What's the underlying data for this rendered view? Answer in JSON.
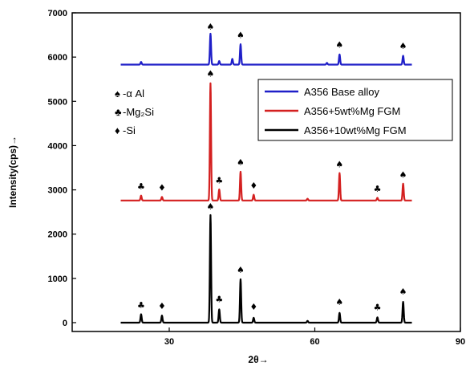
{
  "chart_data": {
    "type": "line",
    "xlabel": "2θ→",
    "ylabel": "Intensity(cps)→",
    "xlim": [
      10,
      90
    ],
    "ylim": [
      -200,
      7000
    ],
    "xticks": [
      30,
      60,
      90
    ],
    "yticks": [
      0,
      1000,
      2000,
      3000,
      4000,
      5000,
      6000,
      7000
    ],
    "grid": false,
    "legend_position": "top-right",
    "series": [
      {
        "name": "A356 Base alloy",
        "color": "#1f1fc8",
        "baseline": 5830,
        "peaks": [
          [
            24.2,
            60
          ],
          [
            38.5,
            700
          ],
          [
            40.3,
            80
          ],
          [
            43.0,
            130
          ],
          [
            44.7,
            460
          ],
          [
            62.5,
            40
          ],
          [
            65.1,
            230
          ],
          [
            78.2,
            200
          ]
        ]
      },
      {
        "name": "A356+5wt%Mg FGM",
        "color": "#d42020",
        "baseline": 2760,
        "peaks": [
          [
            24.2,
            110
          ],
          [
            28.5,
            80
          ],
          [
            38.5,
            2650
          ],
          [
            40.3,
            250
          ],
          [
            44.7,
            650
          ],
          [
            47.4,
            130
          ],
          [
            58.5,
            40
          ],
          [
            65.1,
            620
          ],
          [
            72.9,
            60
          ],
          [
            78.2,
            380
          ]
        ]
      },
      {
        "name": "A356+10wt%Mg FGM",
        "color": "#000000",
        "baseline": 0,
        "peaks": [
          [
            24.2,
            190
          ],
          [
            28.5,
            160
          ],
          [
            38.5,
            2430
          ],
          [
            40.3,
            300
          ],
          [
            44.7,
            980
          ],
          [
            47.4,
            110
          ],
          [
            58.5,
            40
          ],
          [
            65.1,
            220
          ],
          [
            72.9,
            120
          ],
          [
            78.2,
            470
          ]
        ]
      }
    ],
    "marker_legend": [
      {
        "symbol": "♠",
        "label": "-α Al"
      },
      {
        "symbol": "♣",
        "label": "-Mg₂Si"
      },
      {
        "symbol": "♦",
        "label": "-Si"
      }
    ],
    "annotations": [
      {
        "symbol": "♠",
        "x": 38.5,
        "y": 6620
      },
      {
        "symbol": "♠",
        "x": 44.7,
        "y": 6430
      },
      {
        "symbol": "♠",
        "x": 65.1,
        "y": 6210
      },
      {
        "symbol": "♠",
        "x": 78.2,
        "y": 6180
      },
      {
        "symbol": "♠",
        "x": 38.5,
        "y": 5560
      },
      {
        "symbol": "♣",
        "x": 24.2,
        "y": 3010
      },
      {
        "symbol": "♦",
        "x": 28.5,
        "y": 2980
      },
      {
        "symbol": "♣",
        "x": 40.3,
        "y": 3150
      },
      {
        "symbol": "♠",
        "x": 44.7,
        "y": 3550
      },
      {
        "symbol": "♦",
        "x": 47.4,
        "y": 3030
      },
      {
        "symbol": "♠",
        "x": 65.1,
        "y": 3510
      },
      {
        "symbol": "♣",
        "x": 72.9,
        "y": 2960
      },
      {
        "symbol": "♠",
        "x": 78.2,
        "y": 3270
      },
      {
        "symbol": "♠",
        "x": 38.5,
        "y": 2560
      },
      {
        "symbol": "♣",
        "x": 24.2,
        "y": 330
      },
      {
        "symbol": "♦",
        "x": 28.5,
        "y": 310
      },
      {
        "symbol": "♣",
        "x": 40.3,
        "y": 460
      },
      {
        "symbol": "♠",
        "x": 44.7,
        "y": 1120
      },
      {
        "symbol": "♦",
        "x": 47.4,
        "y": 290
      },
      {
        "symbol": "♠",
        "x": 65.1,
        "y": 400
      },
      {
        "symbol": "♣",
        "x": 72.9,
        "y": 280
      },
      {
        "symbol": "♠",
        "x": 78.2,
        "y": 630
      }
    ]
  }
}
